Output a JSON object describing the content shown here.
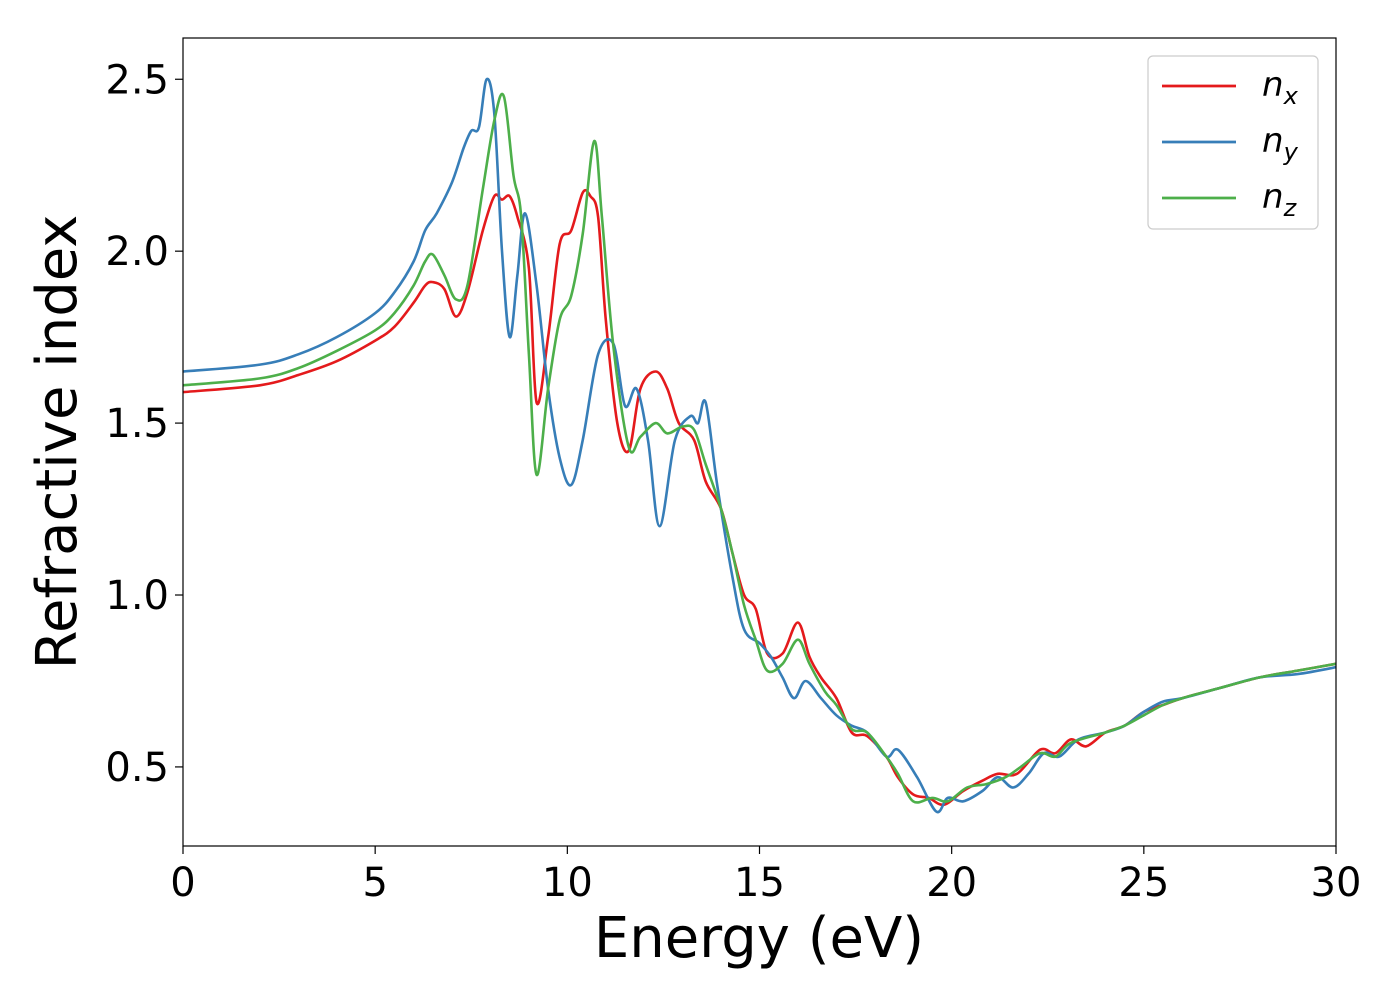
{
  "chart_data": {
    "type": "line",
    "title": "",
    "xlabel": "Energy (eV)",
    "ylabel": "Refractive index",
    "xlim": [
      0,
      30
    ],
    "ylim": [
      0.27,
      2.62
    ],
    "xticks": [
      0,
      5,
      10,
      15,
      20,
      25,
      30
    ],
    "yticks": [
      0.5,
      1.0,
      1.5,
      2.0,
      2.5
    ],
    "xtick_labels": [
      "0",
      "5",
      "10",
      "15",
      "20",
      "25",
      "30"
    ],
    "ytick_labels": [
      "0.5",
      "1.0",
      "1.5",
      "2.0",
      "2.5"
    ],
    "grid": false,
    "legend_position": "top-right",
    "series": [
      {
        "name": "n",
        "subscript": "x",
        "color": "#e41a1c",
        "points": [
          [
            0,
            1.59
          ],
          [
            2,
            1.61
          ],
          [
            3,
            1.64
          ],
          [
            4,
            1.68
          ],
          [
            5,
            1.74
          ],
          [
            5.5,
            1.78
          ],
          [
            6,
            1.85
          ],
          [
            6.3,
            1.9
          ],
          [
            6.5,
            1.91
          ],
          [
            6.8,
            1.89
          ],
          [
            7.1,
            1.81
          ],
          [
            7.4,
            1.88
          ],
          [
            7.8,
            2.06
          ],
          [
            8.1,
            2.16
          ],
          [
            8.3,
            2.15
          ],
          [
            8.5,
            2.16
          ],
          [
            8.7,
            2.1
          ],
          [
            9.0,
            1.95
          ],
          [
            9.2,
            1.56
          ],
          [
            9.5,
            1.75
          ],
          [
            9.8,
            2.02
          ],
          [
            10.1,
            2.06
          ],
          [
            10.4,
            2.17
          ],
          [
            10.6,
            2.16
          ],
          [
            10.8,
            2.1
          ],
          [
            11.0,
            1.8
          ],
          [
            11.3,
            1.5
          ],
          [
            11.6,
            1.42
          ],
          [
            11.9,
            1.6
          ],
          [
            12.3,
            1.65
          ],
          [
            12.6,
            1.6
          ],
          [
            12.9,
            1.5
          ],
          [
            13.3,
            1.45
          ],
          [
            13.6,
            1.33
          ],
          [
            14.0,
            1.25
          ],
          [
            14.3,
            1.12
          ],
          [
            14.6,
            1.0
          ],
          [
            14.9,
            0.96
          ],
          [
            15.2,
            0.83
          ],
          [
            15.6,
            0.83
          ],
          [
            16.0,
            0.92
          ],
          [
            16.3,
            0.82
          ],
          [
            16.6,
            0.76
          ],
          [
            17.0,
            0.7
          ],
          [
            17.4,
            0.6
          ],
          [
            17.8,
            0.59
          ],
          [
            18.3,
            0.53
          ],
          [
            18.6,
            0.47
          ],
          [
            19.0,
            0.42
          ],
          [
            19.4,
            0.41
          ],
          [
            19.8,
            0.39
          ],
          [
            20.3,
            0.43
          ],
          [
            20.8,
            0.46
          ],
          [
            21.2,
            0.48
          ],
          [
            21.7,
            0.48
          ],
          [
            22.3,
            0.55
          ],
          [
            22.7,
            0.54
          ],
          [
            23.1,
            0.58
          ],
          [
            23.5,
            0.56
          ],
          [
            24.0,
            0.6
          ],
          [
            24.5,
            0.62
          ],
          [
            25.0,
            0.66
          ],
          [
            25.5,
            0.68
          ],
          [
            26.0,
            0.7
          ],
          [
            27.0,
            0.73
          ],
          [
            28.0,
            0.76
          ],
          [
            29.0,
            0.78
          ],
          [
            30.0,
            0.8
          ]
        ]
      },
      {
        "name": "n",
        "subscript": "y",
        "color": "#377eb8",
        "points": [
          [
            0,
            1.65
          ],
          [
            2,
            1.67
          ],
          [
            3,
            1.7
          ],
          [
            4,
            1.75
          ],
          [
            5,
            1.82
          ],
          [
            5.5,
            1.88
          ],
          [
            6,
            1.97
          ],
          [
            6.3,
            2.06
          ],
          [
            6.6,
            2.11
          ],
          [
            7.0,
            2.2
          ],
          [
            7.3,
            2.3
          ],
          [
            7.5,
            2.35
          ],
          [
            7.7,
            2.36
          ],
          [
            7.9,
            2.5
          ],
          [
            8.1,
            2.4
          ],
          [
            8.3,
            2.0
          ],
          [
            8.5,
            1.75
          ],
          [
            8.7,
            1.93
          ],
          [
            8.9,
            2.11
          ],
          [
            9.2,
            1.9
          ],
          [
            9.5,
            1.6
          ],
          [
            9.8,
            1.4
          ],
          [
            10.1,
            1.32
          ],
          [
            10.4,
            1.45
          ],
          [
            10.8,
            1.7
          ],
          [
            11.2,
            1.73
          ],
          [
            11.5,
            1.55
          ],
          [
            11.8,
            1.6
          ],
          [
            12.1,
            1.45
          ],
          [
            12.4,
            1.2
          ],
          [
            12.8,
            1.45
          ],
          [
            13.2,
            1.52
          ],
          [
            13.4,
            1.5
          ],
          [
            13.6,
            1.56
          ],
          [
            13.9,
            1.32
          ],
          [
            14.3,
            1.05
          ],
          [
            14.6,
            0.9
          ],
          [
            15.0,
            0.86
          ],
          [
            15.3,
            0.82
          ],
          [
            15.6,
            0.76
          ],
          [
            15.9,
            0.7
          ],
          [
            16.2,
            0.75
          ],
          [
            16.6,
            0.7
          ],
          [
            17.0,
            0.65
          ],
          [
            17.4,
            0.62
          ],
          [
            17.8,
            0.6
          ],
          [
            18.3,
            0.53
          ],
          [
            18.6,
            0.55
          ],
          [
            19.1,
            0.47
          ],
          [
            19.6,
            0.37
          ],
          [
            19.9,
            0.41
          ],
          [
            20.3,
            0.4
          ],
          [
            20.8,
            0.43
          ],
          [
            21.2,
            0.47
          ],
          [
            21.6,
            0.44
          ],
          [
            22.0,
            0.48
          ],
          [
            22.4,
            0.54
          ],
          [
            22.8,
            0.53
          ],
          [
            23.3,
            0.58
          ],
          [
            24.0,
            0.6
          ],
          [
            24.5,
            0.62
          ],
          [
            25.0,
            0.66
          ],
          [
            25.5,
            0.69
          ],
          [
            26.0,
            0.7
          ],
          [
            27.0,
            0.73
          ],
          [
            28.0,
            0.76
          ],
          [
            29.0,
            0.77
          ],
          [
            30.0,
            0.79
          ]
        ]
      },
      {
        "name": "n",
        "subscript": "z",
        "color": "#4daf4a",
        "points": [
          [
            0,
            1.61
          ],
          [
            2,
            1.63
          ],
          [
            3,
            1.66
          ],
          [
            4,
            1.71
          ],
          [
            5,
            1.77
          ],
          [
            5.5,
            1.82
          ],
          [
            6,
            1.9
          ],
          [
            6.3,
            1.97
          ],
          [
            6.5,
            1.99
          ],
          [
            6.8,
            1.93
          ],
          [
            7.1,
            1.86
          ],
          [
            7.4,
            1.9
          ],
          [
            7.8,
            2.18
          ],
          [
            8.1,
            2.38
          ],
          [
            8.35,
            2.45
          ],
          [
            8.6,
            2.22
          ],
          [
            8.8,
            2.1
          ],
          [
            9.0,
            1.7
          ],
          [
            9.2,
            1.35
          ],
          [
            9.5,
            1.6
          ],
          [
            9.8,
            1.8
          ],
          [
            10.1,
            1.87
          ],
          [
            10.4,
            2.05
          ],
          [
            10.7,
            2.32
          ],
          [
            10.9,
            2.1
          ],
          [
            11.2,
            1.72
          ],
          [
            11.6,
            1.43
          ],
          [
            11.9,
            1.46
          ],
          [
            12.3,
            1.5
          ],
          [
            12.6,
            1.47
          ],
          [
            13.0,
            1.49
          ],
          [
            13.3,
            1.48
          ],
          [
            13.6,
            1.38
          ],
          [
            14.0,
            1.25
          ],
          [
            14.3,
            1.12
          ],
          [
            14.6,
            0.97
          ],
          [
            14.9,
            0.87
          ],
          [
            15.2,
            0.78
          ],
          [
            15.6,
            0.8
          ],
          [
            16.0,
            0.87
          ],
          [
            16.3,
            0.8
          ],
          [
            16.7,
            0.72
          ],
          [
            17.0,
            0.68
          ],
          [
            17.4,
            0.61
          ],
          [
            17.8,
            0.6
          ],
          [
            18.3,
            0.53
          ],
          [
            18.6,
            0.48
          ],
          [
            19.0,
            0.4
          ],
          [
            19.5,
            0.41
          ],
          [
            19.9,
            0.4
          ],
          [
            20.4,
            0.44
          ],
          [
            20.9,
            0.45
          ],
          [
            21.4,
            0.47
          ],
          [
            21.8,
            0.5
          ],
          [
            22.3,
            0.54
          ],
          [
            22.7,
            0.53
          ],
          [
            23.1,
            0.57
          ],
          [
            24.0,
            0.6
          ],
          [
            24.5,
            0.62
          ],
          [
            25.0,
            0.65
          ],
          [
            25.5,
            0.68
          ],
          [
            26.0,
            0.7
          ],
          [
            27.0,
            0.73
          ],
          [
            28.0,
            0.76
          ],
          [
            29.0,
            0.78
          ],
          [
            30.0,
            0.8
          ]
        ]
      }
    ]
  }
}
